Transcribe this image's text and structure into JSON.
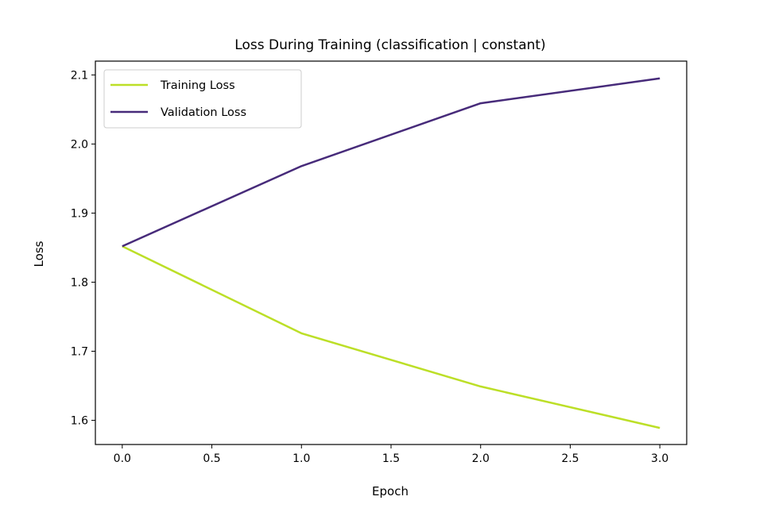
{
  "chart_data": {
    "type": "line",
    "title": "Loss During Training (classification | constant)",
    "xlabel": "Epoch",
    "ylabel": "Loss",
    "x": [
      0,
      1,
      2,
      3
    ],
    "xlim": [
      -0.15,
      3.15
    ],
    "ylim": [
      1.565,
      2.12
    ],
    "xticks": [
      "0.0",
      "0.5",
      "1.0",
      "1.5",
      "2.0",
      "2.5",
      "3.0"
    ],
    "yticks": [
      "1.6",
      "1.7",
      "1.8",
      "1.9",
      "2.0",
      "2.1"
    ],
    "grid": false,
    "legend_position": "top-left",
    "series": [
      {
        "name": "Training Loss",
        "color": "#bcdf27",
        "values": [
          1.852,
          1.726,
          1.649,
          1.589
        ]
      },
      {
        "name": "Validation Loss",
        "color": "#472b7a",
        "values": [
          1.852,
          1.968,
          2.059,
          2.095
        ]
      }
    ]
  }
}
